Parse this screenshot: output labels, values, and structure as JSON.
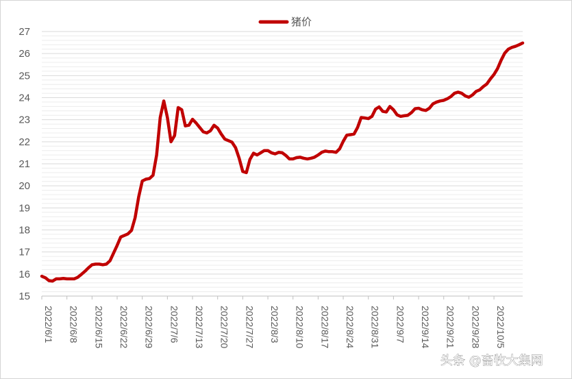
{
  "chart_data": {
    "type": "line",
    "title": "",
    "xlabel": "",
    "ylabel": "",
    "ylim": [
      15,
      27
    ],
    "y_ticks": [
      15,
      16,
      17,
      18,
      19,
      20,
      21,
      22,
      23,
      24,
      25,
      26,
      27
    ],
    "minor_grid": true,
    "legend_position": "top",
    "x_tick_labels": [
      "2022/6/1",
      "2022/6/8",
      "2022/6/15",
      "2022/6/22",
      "2022/6/29",
      "2022/7/6",
      "2022/7/13",
      "2022/7/20",
      "2022/7/27",
      "2022/8/3",
      "2022/8/10",
      "2022/8/17",
      "2022/8/24",
      "2022/8/31",
      "2022/9/7",
      "2022/9/14",
      "2022/9/21",
      "2022/9/28",
      "2022/10/5"
    ],
    "series": [
      {
        "name": "猪价",
        "color": "#c00000",
        "x": [
          "2022/6/1",
          "2022/6/2",
          "2022/6/3",
          "2022/6/4",
          "2022/6/5",
          "2022/6/6",
          "2022/6/7",
          "2022/6/8",
          "2022/6/9",
          "2022/6/10",
          "2022/6/11",
          "2022/6/12",
          "2022/6/13",
          "2022/6/14",
          "2022/6/15",
          "2022/6/16",
          "2022/6/17",
          "2022/6/18",
          "2022/6/19",
          "2022/6/20",
          "2022/6/21",
          "2022/6/22",
          "2022/6/23",
          "2022/6/24",
          "2022/6/25",
          "2022/6/26",
          "2022/6/27",
          "2022/6/28",
          "2022/6/29",
          "2022/6/30",
          "2022/7/1",
          "2022/7/2",
          "2022/7/3",
          "2022/7/4",
          "2022/7/5",
          "2022/7/6",
          "2022/7/7",
          "2022/7/8",
          "2022/7/9",
          "2022/7/10",
          "2022/7/11",
          "2022/7/12",
          "2022/7/13",
          "2022/7/14",
          "2022/7/15",
          "2022/7/16",
          "2022/7/17",
          "2022/7/18",
          "2022/7/19",
          "2022/7/20",
          "2022/7/21",
          "2022/7/22",
          "2022/7/23",
          "2022/7/24",
          "2022/7/25",
          "2022/7/26",
          "2022/7/27",
          "2022/7/28",
          "2022/7/29",
          "2022/7/30",
          "2022/7/31",
          "2022/8/1",
          "2022/8/2",
          "2022/8/3",
          "2022/8/4",
          "2022/8/5",
          "2022/8/6",
          "2022/8/7",
          "2022/8/8",
          "2022/8/9",
          "2022/8/10",
          "2022/8/11",
          "2022/8/12",
          "2022/8/13",
          "2022/8/14",
          "2022/8/15",
          "2022/8/16",
          "2022/8/17",
          "2022/8/18",
          "2022/8/19",
          "2022/8/20",
          "2022/8/21",
          "2022/8/22",
          "2022/8/23",
          "2022/8/24",
          "2022/8/25",
          "2022/8/26",
          "2022/8/27",
          "2022/8/28",
          "2022/8/29",
          "2022/8/30",
          "2022/8/31",
          "2022/9/1",
          "2022/9/2",
          "2022/9/3",
          "2022/9/4",
          "2022/9/5",
          "2022/9/6",
          "2022/9/7",
          "2022/9/8",
          "2022/9/9",
          "2022/9/10",
          "2022/9/11",
          "2022/9/12",
          "2022/9/13",
          "2022/9/14",
          "2022/9/15",
          "2022/9/16",
          "2022/9/17",
          "2022/9/18",
          "2022/9/19",
          "2022/9/20",
          "2022/9/21",
          "2022/9/22",
          "2022/9/23",
          "2022/9/24",
          "2022/9/25",
          "2022/9/26",
          "2022/9/27",
          "2022/9/28",
          "2022/9/29",
          "2022/9/30",
          "2022/10/1",
          "2022/10/2",
          "2022/10/3",
          "2022/10/4",
          "2022/10/5",
          "2022/10/6",
          "2022/10/7",
          "2022/10/8",
          "2022/10/9",
          "2022/10/10",
          "2022/10/11",
          "2022/10/12",
          "2022/10/13"
        ],
        "values": [
          15.9,
          15.83,
          15.7,
          15.68,
          15.78,
          15.78,
          15.8,
          15.78,
          15.78,
          15.78,
          15.85,
          15.98,
          16.12,
          16.28,
          16.42,
          16.45,
          16.45,
          16.42,
          16.45,
          16.6,
          16.95,
          17.3,
          17.68,
          17.75,
          17.82,
          17.98,
          18.55,
          19.5,
          20.22,
          20.3,
          20.33,
          20.48,
          21.4,
          23.1,
          23.85,
          23.1,
          22.0,
          22.28,
          23.55,
          23.45,
          22.72,
          22.75,
          23.02,
          22.85,
          22.65,
          22.45,
          22.4,
          22.5,
          22.75,
          22.62,
          22.35,
          22.12,
          22.05,
          21.98,
          21.73,
          21.25,
          20.65,
          20.6,
          21.2,
          21.48,
          21.4,
          21.5,
          21.6,
          21.6,
          21.5,
          21.45,
          21.52,
          21.5,
          21.38,
          21.22,
          21.22,
          21.28,
          21.3,
          21.25,
          21.22,
          21.25,
          21.3,
          21.4,
          21.52,
          21.58,
          21.55,
          21.55,
          21.52,
          21.68,
          22.02,
          22.3,
          22.32,
          22.35,
          22.65,
          23.1,
          23.08,
          23.05,
          23.15,
          23.48,
          23.58,
          23.38,
          23.35,
          23.6,
          23.45,
          23.22,
          23.15,
          23.18,
          23.2,
          23.32,
          23.5,
          23.52,
          23.45,
          23.42,
          23.52,
          23.72,
          23.8,
          23.85,
          23.88,
          23.95,
          24.05,
          24.2,
          24.25,
          24.2,
          24.08,
          24.02,
          24.12,
          24.28,
          24.35,
          24.5,
          24.62,
          24.85,
          25.05,
          25.32,
          25.7,
          26.02,
          26.2,
          26.28,
          26.33,
          26.4,
          26.48
        ]
      }
    ]
  },
  "watermark": "头条 @畜牧大集网"
}
